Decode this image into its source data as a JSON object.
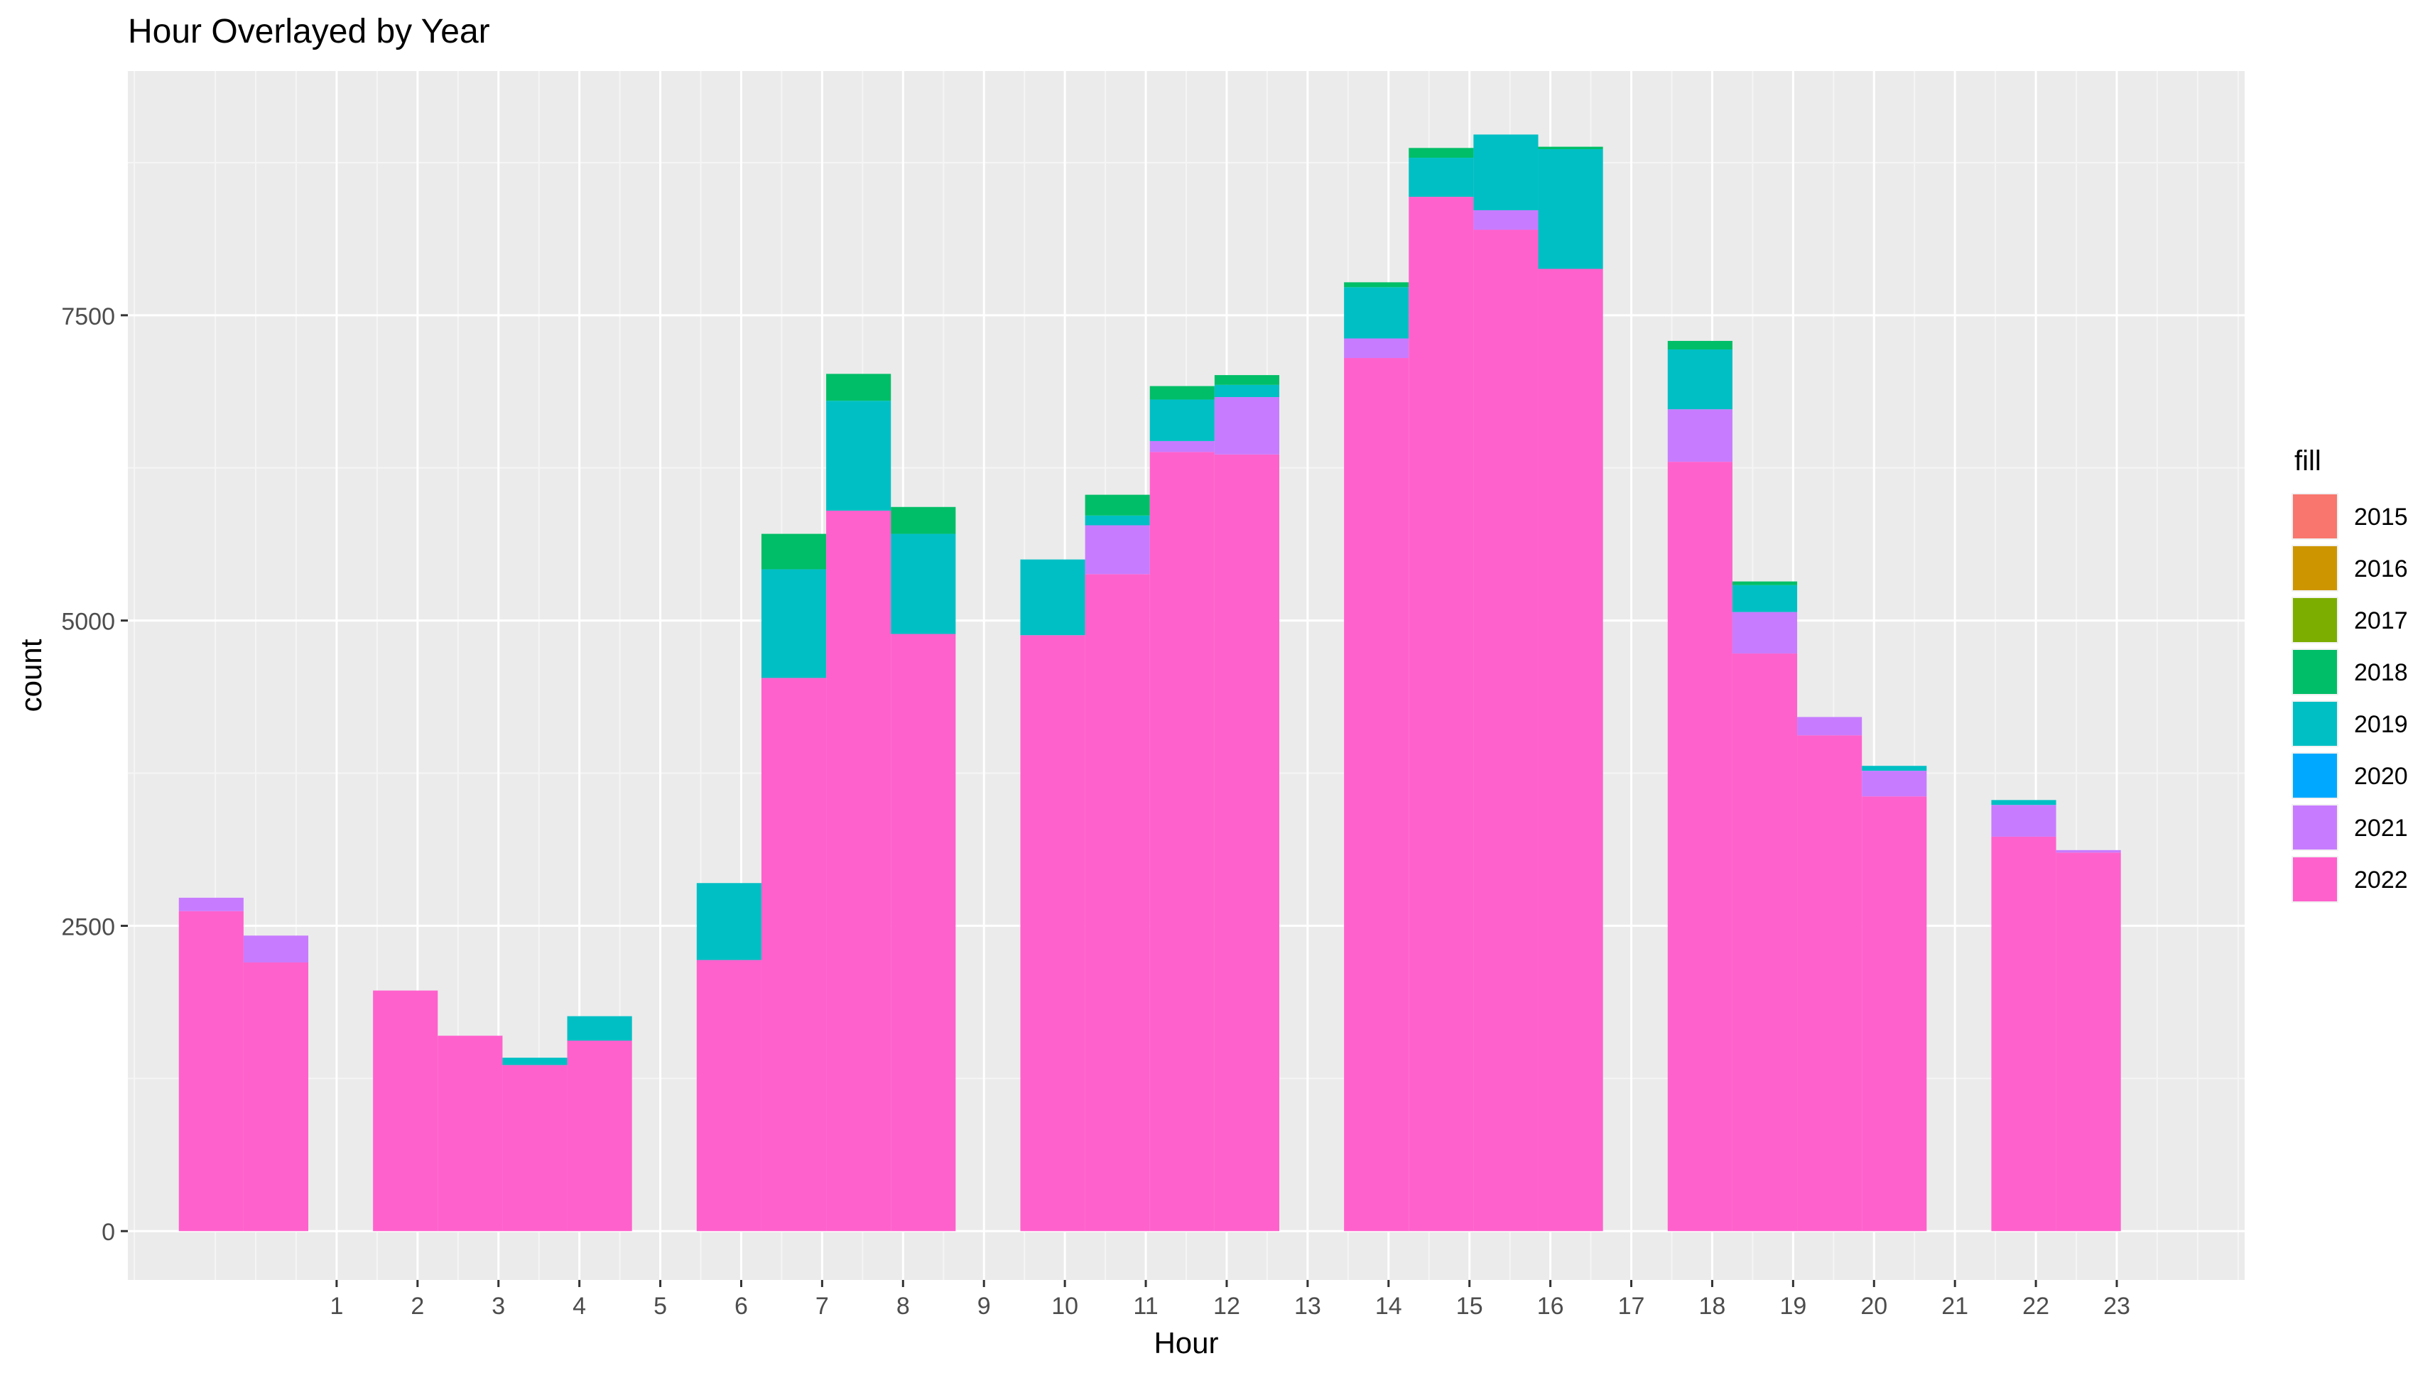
{
  "chart_data": {
    "type": "bar",
    "title": "Hour Overlayed by Year",
    "xlabel": "Hour",
    "ylabel": "count",
    "x_ticks": [
      "1",
      "2",
      "3",
      "4",
      "5",
      "6",
      "7",
      "8",
      "9",
      "10",
      "11",
      "12",
      "13",
      "14",
      "15",
      "16",
      "17",
      "18",
      "19",
      "20",
      "21",
      "22",
      "23"
    ],
    "y_ticks": [
      "0",
      "2500",
      "5000",
      "7500"
    ],
    "ylim": [
      -400,
      9500
    ],
    "grid": true,
    "legend": {
      "title": "fill",
      "position": "right"
    },
    "series_order_bottom_to_top": [
      "2022",
      "2021",
      "2020",
      "2019",
      "2018",
      "2017",
      "2016",
      "2015"
    ],
    "bins": [
      {
        "x0": -0.95,
        "x1": -0.15,
        "2022": 2620,
        "2021": 110,
        "2019": 0,
        "2018": 0
      },
      {
        "x0": -0.15,
        "x1": 0.65,
        "2022": 2200,
        "2021": 220,
        "2019": 0,
        "2018": 0
      },
      {
        "x0": 1.45,
        "x1": 2.25,
        "2022": 1970,
        "2021": 0,
        "2019": 0,
        "2018": 0
      },
      {
        "x0": 2.25,
        "x1": 3.05,
        "2022": 1600,
        "2021": 0,
        "2019": 0,
        "2018": 0
      },
      {
        "x0": 3.05,
        "x1": 3.85,
        "2022": 1360,
        "2021": 0,
        "2019": 60,
        "2018": 0
      },
      {
        "x0": 3.85,
        "x1": 4.65,
        "2022": 1560,
        "2021": 0,
        "2019": 200,
        "2018": 0
      },
      {
        "x0": 5.45,
        "x1": 6.25,
        "2022": 2220,
        "2021": 0,
        "2019": 630,
        "2018": 0
      },
      {
        "x0": 6.25,
        "x1": 7.05,
        "2022": 4530,
        "2021": 0,
        "2019": 890,
        "2018": 290
      },
      {
        "x0": 7.05,
        "x1": 7.85,
        "2022": 5900,
        "2021": 0,
        "2019": 900,
        "2018": 220
      },
      {
        "x0": 7.85,
        "x1": 8.65,
        "2022": 4890,
        "2021": 0,
        "2019": 820,
        "2018": 220
      },
      {
        "x0": 9.45,
        "x1": 10.25,
        "2022": 4880,
        "2021": 0,
        "2019": 620,
        "2018": 0
      },
      {
        "x0": 10.25,
        "x1": 11.05,
        "2022": 5380,
        "2021": 400,
        "2019": 80,
        "2018": 170
      },
      {
        "x0": 11.05,
        "x1": 11.85,
        "2022": 6380,
        "2021": 90,
        "2019": 340,
        "2018": 110
      },
      {
        "x0": 11.85,
        "x1": 12.65,
        "2022": 6360,
        "2021": 470,
        "2019": 100,
        "2018": 80
      },
      {
        "x0": 13.45,
        "x1": 14.25,
        "2022": 7150,
        "2021": 160,
        "2019": 420,
        "2018": 40
      },
      {
        "x0": 14.25,
        "x1": 15.05,
        "2022": 8470,
        "2021": 0,
        "2019": 320,
        "2018": 80
      },
      {
        "x0": 15.05,
        "x1": 15.85,
        "2022": 8200,
        "2021": 160,
        "2019": 620,
        "2018": 0
      },
      {
        "x0": 15.85,
        "x1": 16.65,
        "2022": 7880,
        "2021": 0,
        "2019": 980,
        "2018": 20
      },
      {
        "x0": 17.45,
        "x1": 18.25,
        "2022": 6300,
        "2021": 430,
        "2019": 490,
        "2018": 70
      },
      {
        "x0": 18.25,
        "x1": 19.05,
        "2022": 4730,
        "2021": 340,
        "2019": 220,
        "2018": 30
      },
      {
        "x0": 19.05,
        "x1": 19.85,
        "2022": 4060,
        "2021": 150,
        "2019": 0,
        "2018": 0
      },
      {
        "x0": 19.85,
        "x1": 20.65,
        "2022": 3560,
        "2021": 210,
        "2019": 40,
        "2018": 0
      },
      {
        "x0": 21.45,
        "x1": 22.25,
        "2022": 3230,
        "2021": 260,
        "2019": 40,
        "2018": 0
      },
      {
        "x0": 22.25,
        "x1": 23.05,
        "2022": 3100,
        "2021": 20,
        "2019": 0,
        "2018": 0
      }
    ],
    "colors": {
      "2015": "#F8766D",
      "2016": "#CD9600",
      "2017": "#7CAE00",
      "2018": "#00BE67",
      "2019": "#00BFC4",
      "2020": "#00A9FF",
      "2021": "#C77CFF",
      "2022": "#FF61CC"
    },
    "series": [
      {
        "name": "2015"
      },
      {
        "name": "2016"
      },
      {
        "name": "2017"
      },
      {
        "name": "2018"
      },
      {
        "name": "2019"
      },
      {
        "name": "2020"
      },
      {
        "name": "2021"
      },
      {
        "name": "2022"
      }
    ]
  }
}
